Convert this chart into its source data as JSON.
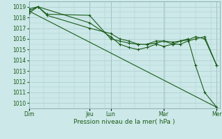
{
  "title": "",
  "xlabel": "Pression niveau de la mer( hPa )",
  "ylabel": "",
  "background_color": "#cce8e8",
  "grid_color": "#aacccc",
  "line_color": "#1a5c1a",
  "ylim": [
    1009.5,
    1019.5
  ],
  "xlim": [
    0,
    252
  ],
  "day_labels": [
    "Dim",
    "Jeu",
    "Lun",
    "Mar",
    "Mer"
  ],
  "day_positions": [
    0,
    80,
    108,
    178,
    248
  ],
  "series1_marked": {
    "x": [
      0,
      12,
      24,
      80,
      108,
      120,
      132,
      144,
      156,
      168,
      178,
      190,
      200,
      210,
      220,
      232,
      248
    ],
    "y": [
      1018.8,
      1019.0,
      1018.2,
      1017.0,
      1016.5,
      1016.0,
      1015.8,
      1015.5,
      1015.5,
      1015.8,
      1015.8,
      1015.5,
      1015.5,
      1015.8,
      1016.0,
      1016.2,
      1013.5
    ]
  },
  "series2_marked": {
    "x": [
      0,
      12,
      80,
      108,
      120,
      132,
      144,
      156,
      168,
      178,
      190,
      200,
      210,
      220,
      232,
      248
    ],
    "y": [
      1018.4,
      1019.0,
      1017.5,
      1016.2,
      1015.5,
      1015.2,
      1015.0,
      1015.2,
      1015.5,
      1015.3,
      1015.5,
      1015.8,
      1016.0,
      1013.5,
      1011.0,
      1009.6
    ]
  },
  "series3_line": {
    "x": [
      0,
      248
    ],
    "y": [
      1018.6,
      1009.6
    ]
  },
  "series4_marked": {
    "x": [
      0,
      12,
      24,
      80,
      108,
      120,
      132,
      144,
      156,
      168,
      178,
      190,
      200,
      210,
      220,
      232,
      248
    ],
    "y": [
      1018.6,
      1019.0,
      1018.3,
      1018.2,
      1016.0,
      1015.8,
      1015.6,
      1015.5,
      1015.5,
      1015.6,
      1015.8,
      1015.7,
      1015.8,
      1015.9,
      1016.2,
      1016.0,
      1013.5
    ]
  }
}
